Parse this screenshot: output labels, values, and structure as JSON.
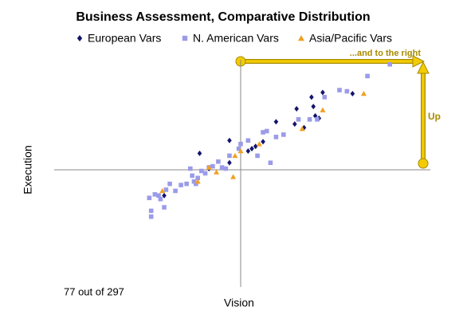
{
  "chart_data": {
    "type": "scatter",
    "title": "Business Assessment, Comparative Distribution",
    "x_label": "Vision",
    "y_label": "Execution",
    "annotations": [
      "77 out of 297",
      "...and to the right",
      "Up"
    ],
    "xlim": [
      -10,
      10
    ],
    "ylim": [
      -10,
      10
    ],
    "series": [
      {
        "name": "European Vars",
        "color": "#14146b",
        "marker": "diamond",
        "x": [
          -2.2,
          -1.7,
          -0.6,
          -0.6,
          0.4,
          0.6,
          0.8,
          1.2,
          1.9,
          3.0,
          2.9,
          3.4,
          3.8,
          3.9,
          4.0,
          4.2,
          4.4,
          6.0,
          -4.1
        ],
        "values": [
          1.4,
          0.1,
          2.5,
          0.6,
          1.6,
          1.8,
          2.0,
          2.4,
          4.1,
          5.2,
          3.9,
          3.6,
          6.2,
          5.4,
          4.6,
          4.4,
          6.6,
          6.5,
          -2.2
        ]
      },
      {
        "name": "N. American Vars",
        "color": "#9b9bea",
        "marker": "square",
        "x": [
          -4.8,
          -4.8,
          -4.9,
          -4.6,
          -4.4,
          -4.3,
          -4.1,
          -4.0,
          -3.8,
          -3.5,
          -3.2,
          -2.9,
          -2.7,
          -2.6,
          -2.5,
          -2.4,
          -2.3,
          -2.1,
          -1.9,
          -1.7,
          -1.5,
          -1.2,
          -1.0,
          -0.8,
          -0.6,
          -0.1,
          0,
          0.4,
          0.9,
          1.2,
          1.4,
          1.6,
          1.9,
          2.3,
          3.1,
          3.7,
          4.1,
          4.5,
          5.3,
          5.7,
          6.8,
          8.0
        ],
        "values": [
          -4.0,
          -3.5,
          -2.4,
          -2.1,
          -2.2,
          -2.5,
          -3.2,
          -1.7,
          -1.2,
          -1.8,
          -1.3,
          -1.2,
          0.1,
          -0.5,
          -1.0,
          -1.2,
          -0.7,
          -0.1,
          -0.3,
          0.2,
          0.3,
          0.7,
          0.2,
          0.1,
          1.2,
          1.8,
          2.2,
          2.5,
          1.2,
          3.2,
          3.3,
          0.6,
          2.8,
          3.0,
          4.3,
          4.3,
          4.3,
          6.2,
          6.8,
          6.7,
          8.0,
          9.0
        ]
      },
      {
        "name": "Asia/Pacific Vars",
        "color": "#f0a020",
        "marker": "triangle",
        "x": [
          -4.2,
          -2.3,
          -1.7,
          -1.3,
          -0.4,
          0,
          1.0,
          3.3,
          4.4,
          6.6,
          -0.3
        ],
        "values": [
          -1.8,
          -1.0,
          0.2,
          -0.2,
          -0.6,
          1.6,
          2.2,
          3.5,
          5.1,
          6.5,
          1.2
        ]
      }
    ]
  }
}
